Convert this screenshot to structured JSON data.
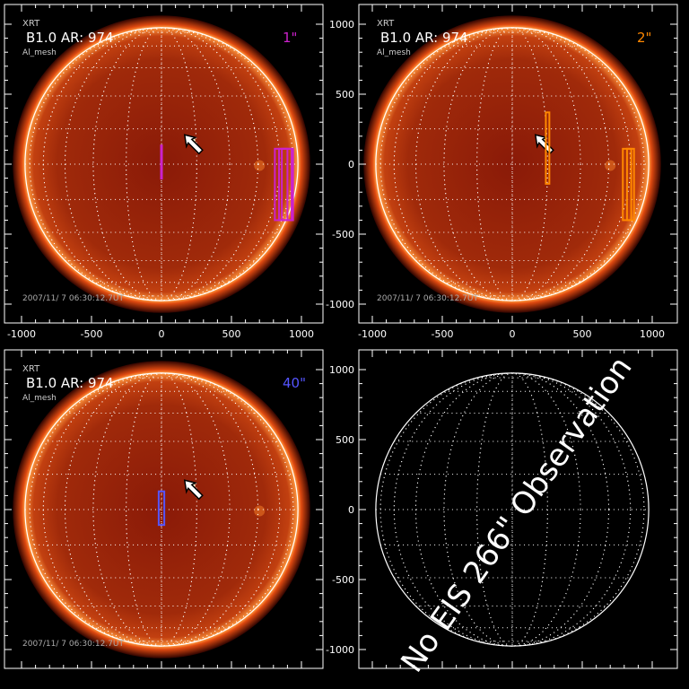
{
  "chart_data": {
    "type": "image-grid",
    "axis_ticks": [
      "-1000",
      "-500",
      "0",
      "500",
      "1000"
    ],
    "xlim": [
      -1150,
      1150
    ],
    "ylim": [
      -1150,
      1150
    ],
    "colors": {
      "limb": "#ffffff",
      "grid": "#ffffff",
      "slit_1": "#cc22cc",
      "slit_2": "#ff8800",
      "slit_40": "#5555ff"
    },
    "panels": [
      {
        "label_instrument": "XRT",
        "label_main": "B1.0 AR:  974",
        "label_filter": "Al_mesh",
        "timestamp": "2007/11/ 7 06:30:12.7UT",
        "slit_label": "1\"",
        "slit_color": "#cc22cc",
        "show_image": true,
        "show_xticks": true,
        "show_yticks": false,
        "slits": [
          {
            "x": [
              0,
              0
            ],
            "y": [
              -110,
              140
            ],
            "kind": "line"
          },
          {
            "x": [
              810,
              900
            ],
            "y": [
              -400,
              110
            ],
            "kind": "rect"
          },
          {
            "x": [
              840,
              930
            ],
            "y": [
              -400,
              110
            ],
            "kind": "rect"
          },
          {
            "x": [
              860,
              940
            ],
            "y": [
              -400,
              110
            ],
            "kind": "rect"
          }
        ]
      },
      {
        "label_instrument": "XRT",
        "label_main": "B1.0 AR:  974",
        "label_filter": "Al_mesh",
        "timestamp": "2007/11/ 7 06:30:12.7UT",
        "slit_label": "2\"",
        "slit_color": "#ff8800",
        "show_image": true,
        "show_xticks": true,
        "show_yticks": true,
        "slits": [
          {
            "x": [
              240,
              265
            ],
            "y": [
              -140,
              370
            ],
            "kind": "rect"
          },
          {
            "x": [
              790,
              850
            ],
            "y": [
              -400,
              110
            ],
            "kind": "rect"
          },
          {
            "x": [
              820,
              870
            ],
            "y": [
              -400,
              110
            ],
            "kind": "rect"
          }
        ]
      },
      {
        "label_instrument": "XRT",
        "label_main": "B1.0 AR:  974",
        "label_filter": "Al_mesh",
        "timestamp": "2007/11/ 7 06:30:12.7UT",
        "slit_label": "40\"",
        "slit_color": "#5555ff",
        "show_image": true,
        "show_xticks": false,
        "show_yticks": false,
        "slits": [
          {
            "x": [
              -20,
              20
            ],
            "y": [
              -110,
              130
            ],
            "kind": "rect"
          }
        ]
      },
      {
        "show_image": false,
        "show_xticks": false,
        "show_yticks": true,
        "message": "No EIS 266\" Observation",
        "slits": []
      }
    ]
  }
}
